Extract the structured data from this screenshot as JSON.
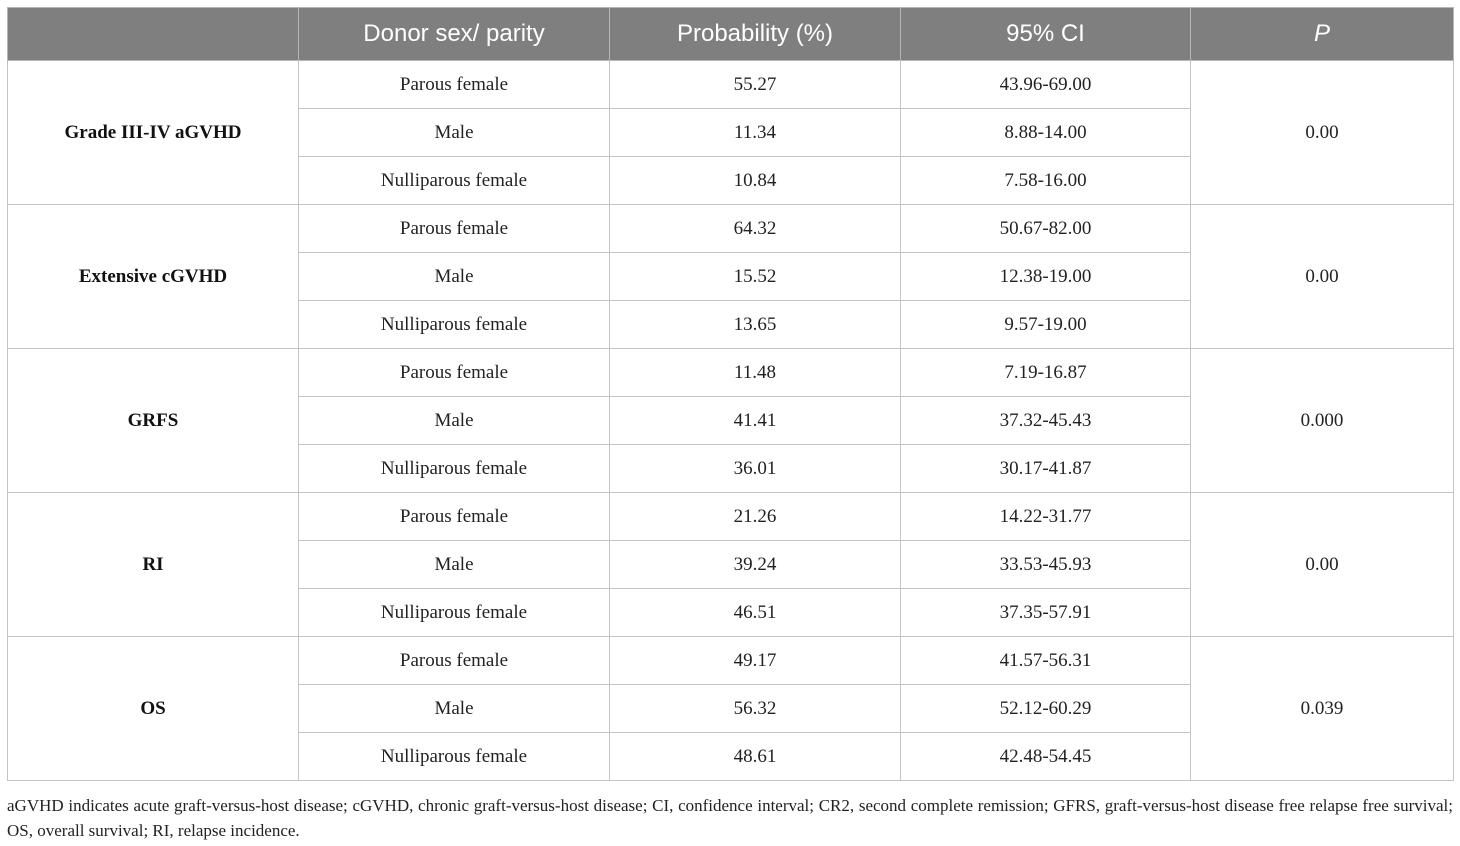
{
  "table": {
    "headers": [
      "",
      "Donor sex/ parity",
      "Probability (%)",
      "95% CI",
      "P"
    ],
    "groups": [
      {
        "outcome": "Grade III-IV aGVHD",
        "p": "0.00",
        "rows": [
          {
            "donor": "Parous female",
            "probability": "55.27",
            "ci": "43.96-69.00"
          },
          {
            "donor": "Male",
            "probability": "11.34",
            "ci": "8.88-14.00"
          },
          {
            "donor": "Nulliparous female",
            "probability": "10.84",
            "ci": "7.58-16.00"
          }
        ]
      },
      {
        "outcome": "Extensive cGVHD",
        "p": "0.00",
        "rows": [
          {
            "donor": "Parous female",
            "probability": "64.32",
            "ci": "50.67-82.00"
          },
          {
            "donor": "Male",
            "probability": "15.52",
            "ci": "12.38-19.00"
          },
          {
            "donor": "Nulliparous female",
            "probability": "13.65",
            "ci": "9.57-19.00"
          }
        ]
      },
      {
        "outcome": "GRFS",
        "p": "0.000",
        "rows": [
          {
            "donor": "Parous female",
            "probability": "11.48",
            "ci": "7.19-16.87"
          },
          {
            "donor": "Male",
            "probability": "41.41",
            "ci": "37.32-45.43"
          },
          {
            "donor": "Nulliparous female",
            "probability": "36.01",
            "ci": "30.17-41.87"
          }
        ]
      },
      {
        "outcome": "RI",
        "p": "0.00",
        "rows": [
          {
            "donor": "Parous female",
            "probability": "21.26",
            "ci": "14.22-31.77"
          },
          {
            "donor": "Male",
            "probability": "39.24",
            "ci": "33.53-45.93"
          },
          {
            "donor": "Nulliparous female",
            "probability": "46.51",
            "ci": "37.35-57.91"
          }
        ]
      },
      {
        "outcome": "OS",
        "p": "0.039",
        "rows": [
          {
            "donor": "Parous female",
            "probability": "49.17",
            "ci": "41.57-56.31"
          },
          {
            "donor": "Male",
            "probability": "56.32",
            "ci": "52.12-60.29"
          },
          {
            "donor": "Nulliparous female",
            "probability": "48.61",
            "ci": "42.48-54.45"
          }
        ]
      }
    ]
  },
  "footnote": "aGVHD indicates acute graft-versus-host disease; cGVHD, chronic graft-versus-host disease; CI, confidence interval; CR2, second complete remission; GFRS, graft-versus-host disease free relapse free survival; OS, overall survival; RI, relapse incidence.",
  "colors": {
    "header_bg": "#7f7f7f",
    "header_text": "#ffffff",
    "grid": "#c4c4c4"
  }
}
